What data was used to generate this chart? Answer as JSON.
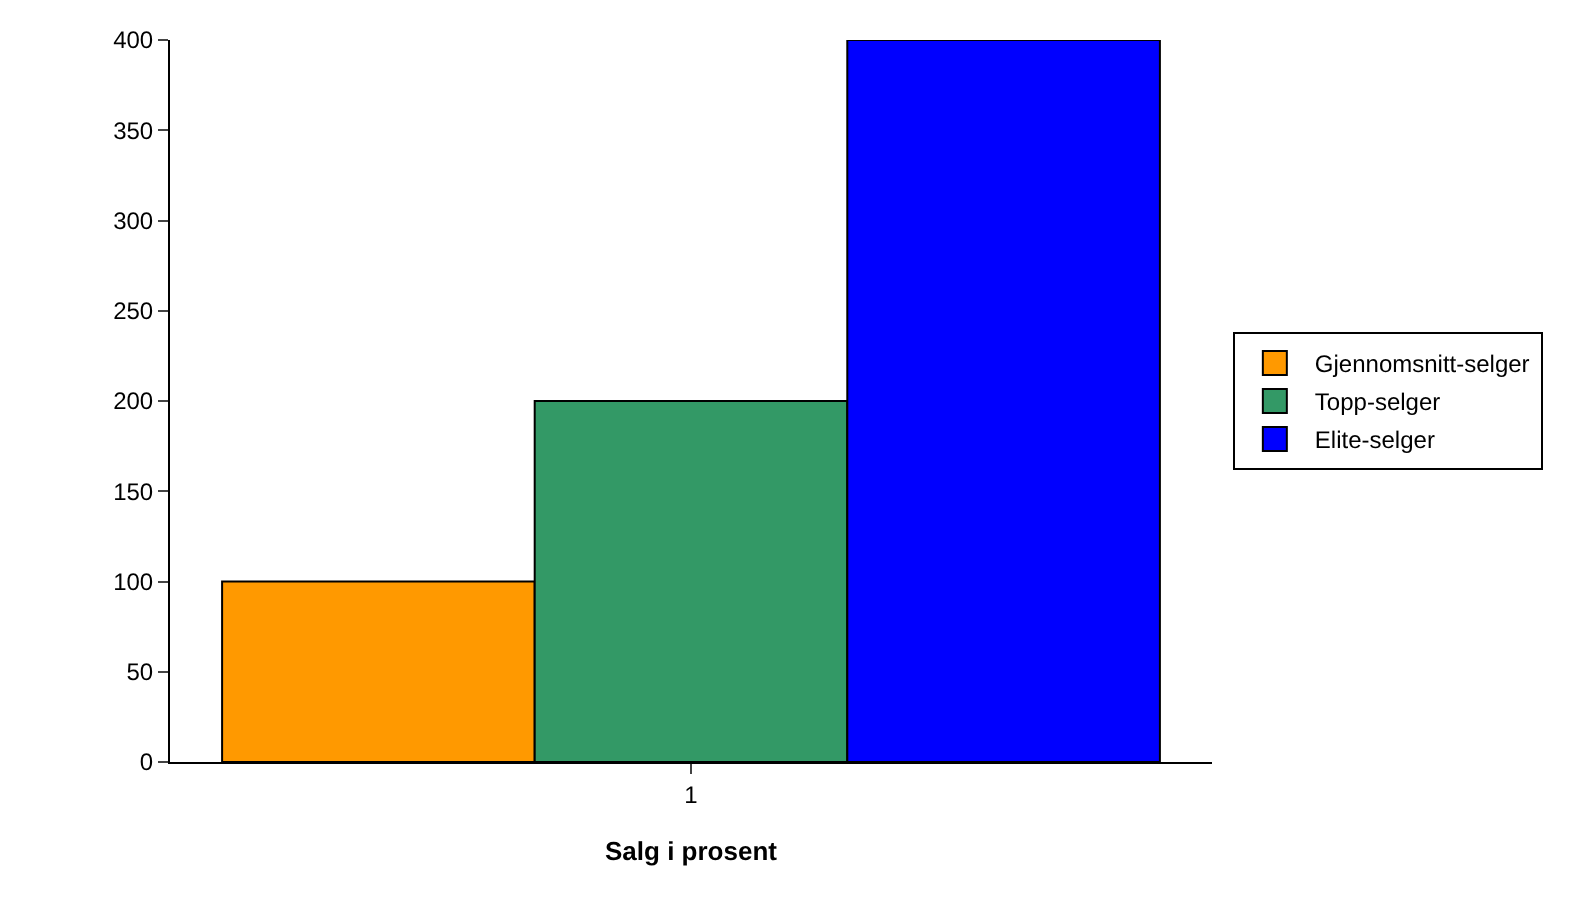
{
  "chart_data": {
    "type": "bar",
    "xlabel": "Salg i prosent",
    "categories": [
      "1"
    ],
    "series": [
      {
        "name": "Gjennomsnitt-selger",
        "color": "#ff9900",
        "values": [
          100
        ]
      },
      {
        "name": "Topp-selger",
        "color": "#339966",
        "values": [
          200
        ]
      },
      {
        "name": "Elite-selger",
        "color": "#0000ff",
        "values": [
          400
        ]
      }
    ],
    "ylim": [
      0,
      400
    ],
    "yticks": [
      0,
      50,
      100,
      150,
      200,
      250,
      300,
      350,
      400
    ],
    "grid": false,
    "legend": "right"
  }
}
